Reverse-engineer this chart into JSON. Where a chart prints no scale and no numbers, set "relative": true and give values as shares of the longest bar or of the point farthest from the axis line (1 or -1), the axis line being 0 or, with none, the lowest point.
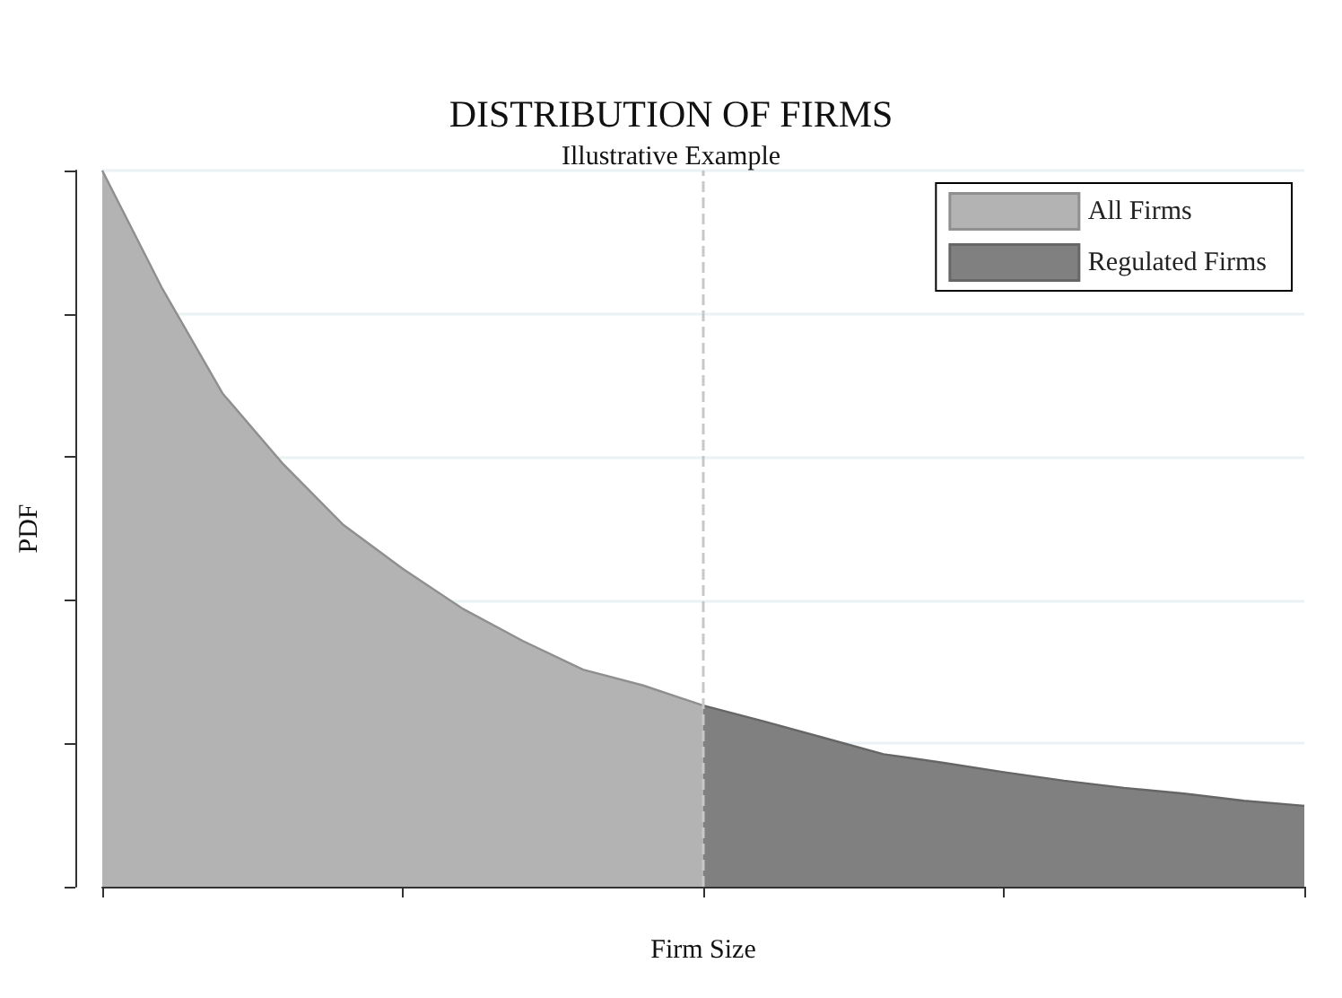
{
  "chart_data": {
    "type": "area",
    "title": "DISTRIBUTION OF FIRMS",
    "subtitle": "Illustrative Example",
    "xlabel": "Firm Size",
    "ylabel": "PDF",
    "relative": true,
    "categories": [
      null,
      null,
      null,
      null,
      null,
      null,
      null,
      null,
      null,
      null,
      null,
      null,
      null,
      null,
      null,
      null,
      null,
      null,
      null,
      null,
      null
    ],
    "series": [
      {
        "name": "All Firms",
        "color": "#b3b3b3",
        "values": [
          1.0,
          0.835,
          0.689,
          0.591,
          0.506,
          0.444,
          0.388,
          0.343,
          0.303,
          0.281,
          0.253,
          null,
          null,
          null,
          null,
          null,
          null,
          null,
          null,
          null,
          null
        ]
      },
      {
        "name": "Regulated Firms",
        "color": "#808080",
        "values": [
          null,
          null,
          null,
          null,
          null,
          null,
          null,
          null,
          null,
          null,
          0.253,
          0.231,
          0.208,
          0.185,
          0.173,
          0.16,
          0.148,
          0.138,
          0.13,
          0.12,
          0.113
        ]
      }
    ],
    "grid": "y",
    "legend": "top right",
    "marker": "none"
  }
}
